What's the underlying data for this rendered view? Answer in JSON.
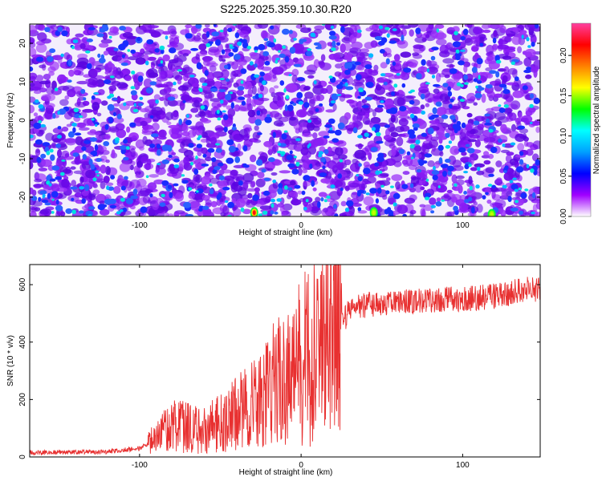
{
  "title": "S225.2025.359.10.30.R20",
  "chart_data": [
    {
      "type": "heatmap",
      "xlabel": "Height of straight line (km)",
      "ylabel": "Frequency (Hz)",
      "xlim": [
        -168,
        148
      ],
      "ylim": [
        -25,
        25
      ],
      "xticks": [
        -100,
        0,
        100
      ],
      "yticks": [
        -20,
        -10,
        0,
        10,
        20
      ],
      "colorbar": {
        "label": "Normalized spectral amplitude",
        "range": [
          0,
          0.24
        ],
        "ticks": [
          "0.00",
          "0.05",
          "0.10",
          "0.15",
          "0.20"
        ],
        "colors": [
          "#ffffff",
          "#a000ff",
          "#0000ff",
          "#00a0ff",
          "#00ffff",
          "#00ff00",
          "#ffff00",
          "#ff8000",
          "#ff0000",
          "#ff40a0"
        ]
      },
      "hotspots": [
        {
          "x": -29,
          "y": -24,
          "value": 0.22
        },
        {
          "x": 45,
          "y": -24,
          "value": 0.12
        },
        {
          "x": 118,
          "y": -24.5,
          "value": 0.11
        }
      ]
    },
    {
      "type": "line",
      "xlabel": "Height of straight line (km)",
      "ylabel": "SNR (10 * v/v)",
      "xlim": [
        -168,
        148
      ],
      "ylim": [
        0,
        670
      ],
      "xticks": [
        -100,
        0,
        100
      ],
      "yticks": [
        0,
        200,
        400,
        600
      ],
      "color": "#e83030",
      "profile": [
        {
          "x": -168,
          "y": 15
        },
        {
          "x": -120,
          "y": 18
        },
        {
          "x": -100,
          "y": 30
        },
        {
          "x": -88,
          "y": 70
        },
        {
          "x": -80,
          "y": 110
        },
        {
          "x": -70,
          "y": 100
        },
        {
          "x": -60,
          "y": 90
        },
        {
          "x": -50,
          "y": 120
        },
        {
          "x": -40,
          "y": 150
        },
        {
          "x": -30,
          "y": 180
        },
        {
          "x": -20,
          "y": 230
        },
        {
          "x": -10,
          "y": 290
        },
        {
          "x": 0,
          "y": 330
        },
        {
          "x": 10,
          "y": 370
        },
        {
          "x": 20,
          "y": 420
        },
        {
          "x": 30,
          "y": 510
        },
        {
          "x": 40,
          "y": 530
        },
        {
          "x": 60,
          "y": 540
        },
        {
          "x": 80,
          "y": 545
        },
        {
          "x": 100,
          "y": 550
        },
        {
          "x": 120,
          "y": 560
        },
        {
          "x": 140,
          "y": 585
        },
        {
          "x": 148,
          "y": 580
        }
      ]
    }
  ]
}
